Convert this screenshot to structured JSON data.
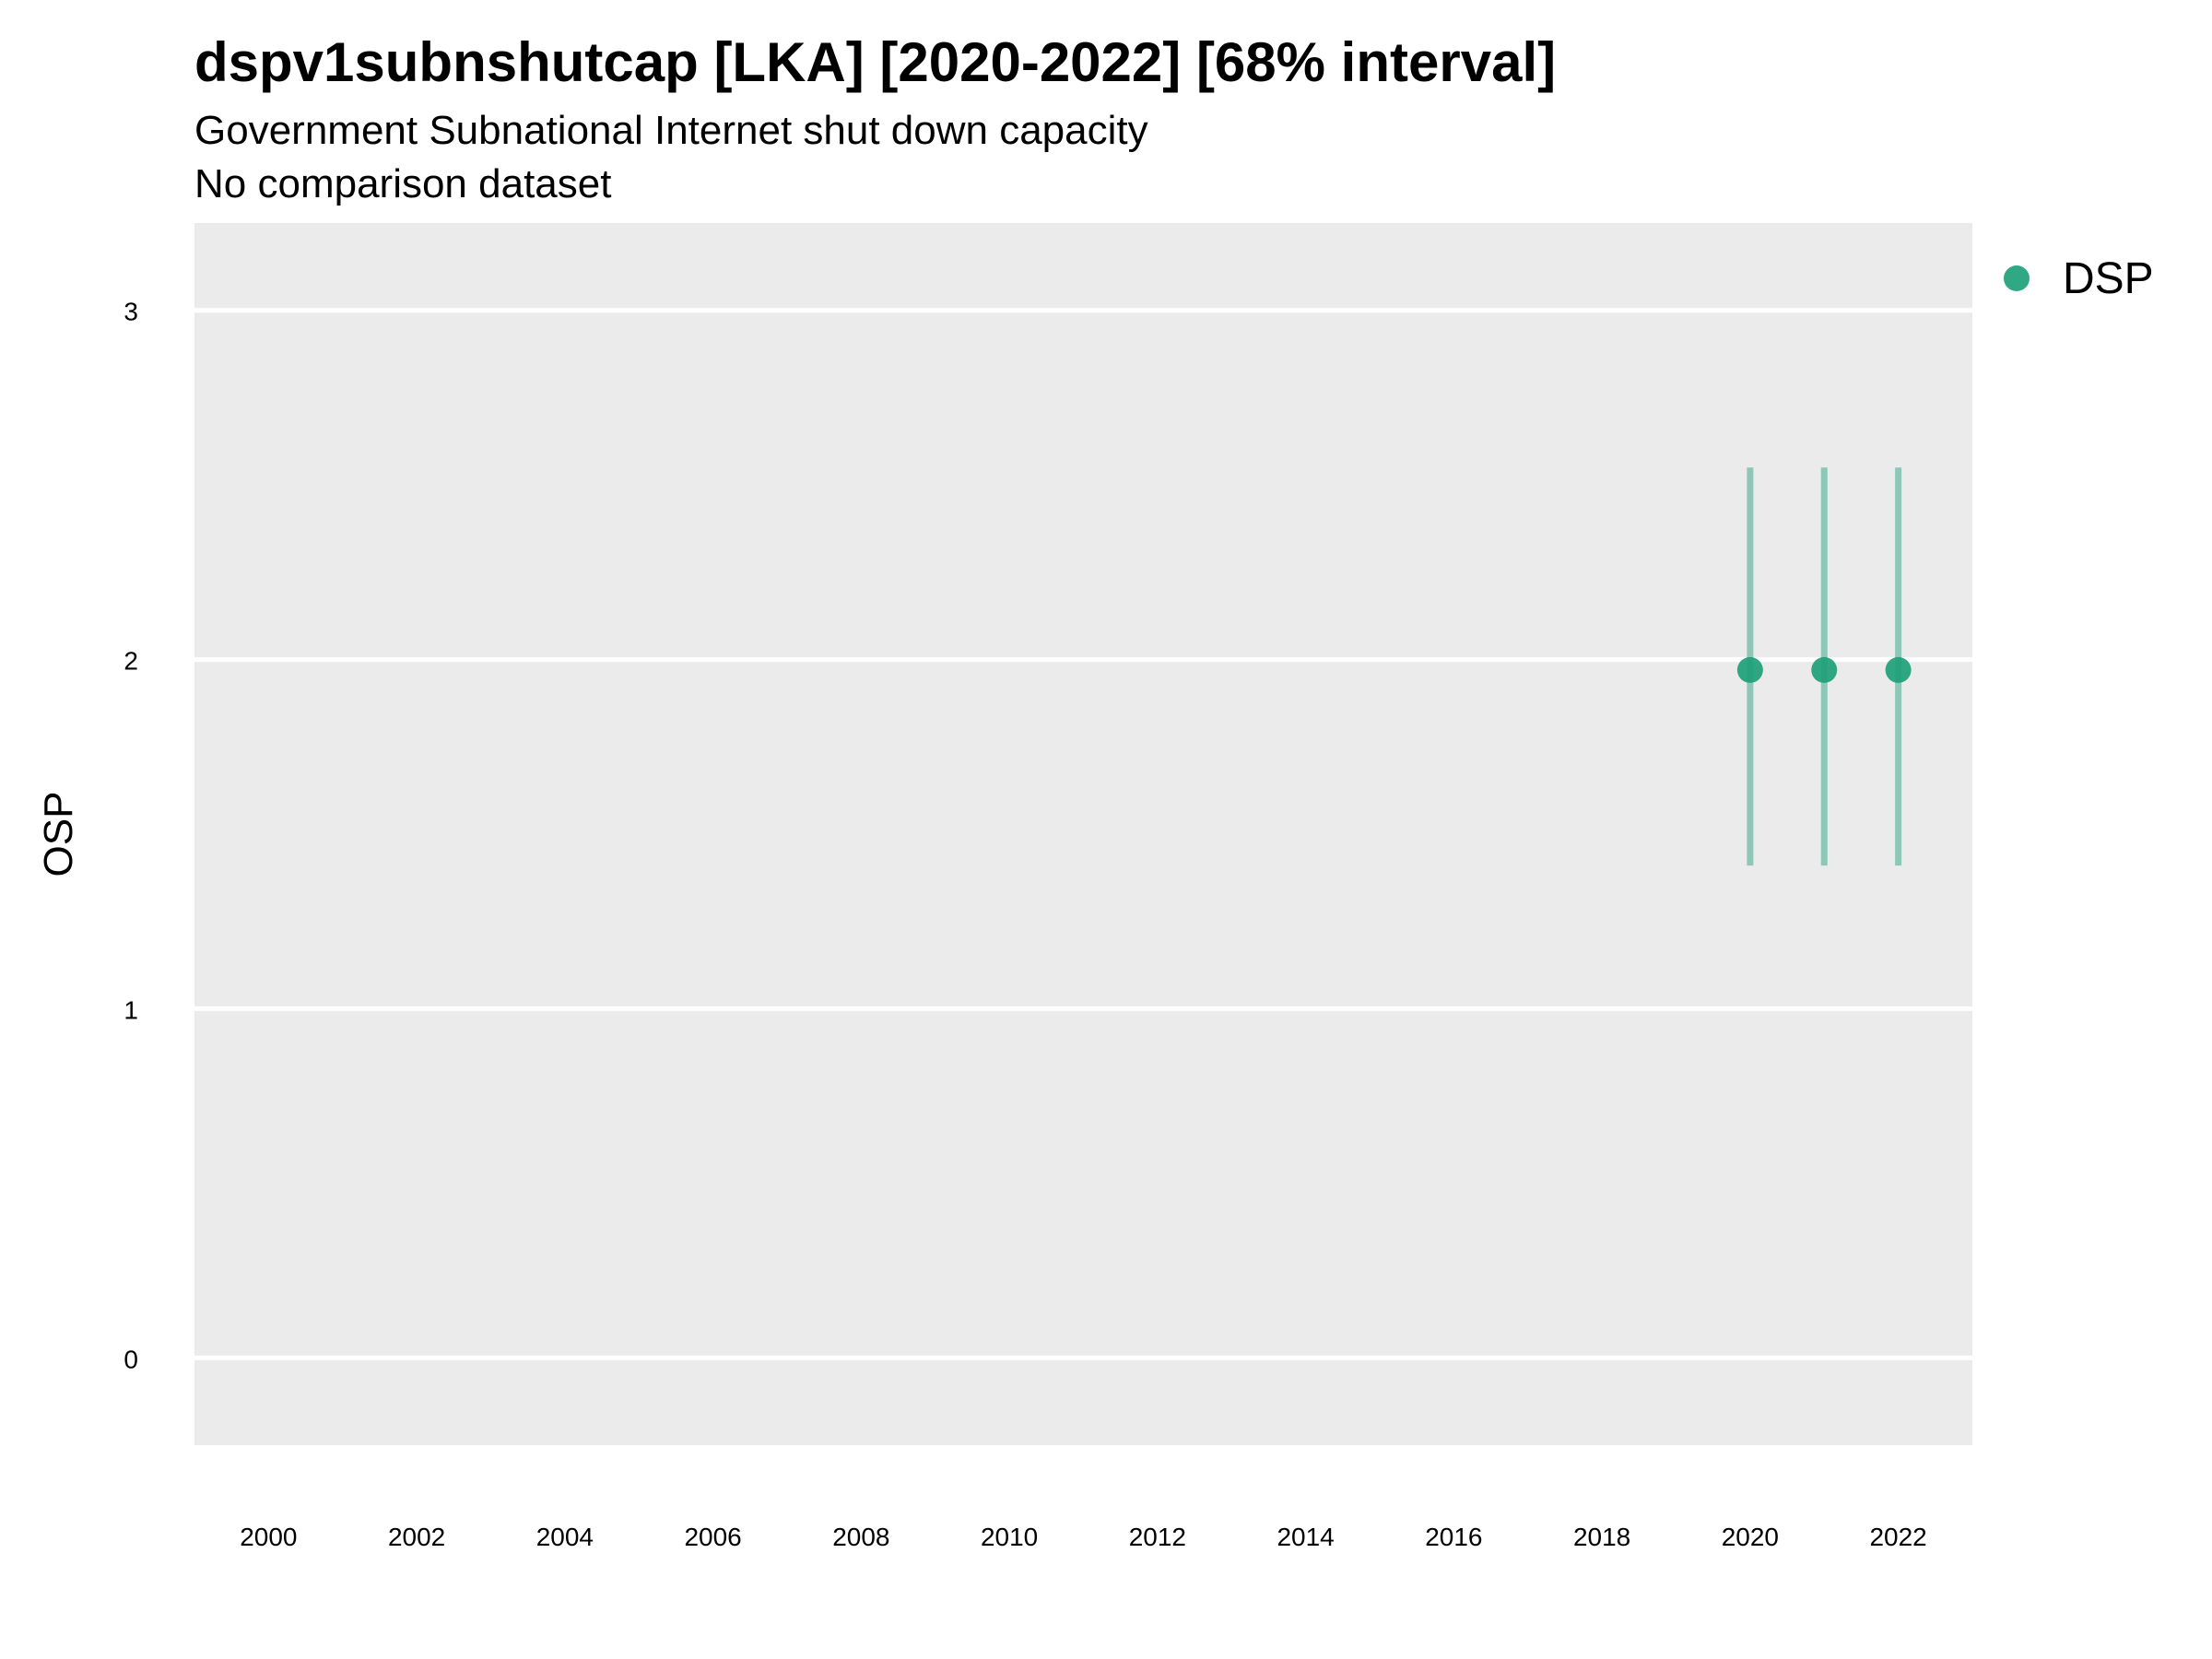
{
  "chart_data": {
    "type": "scatter",
    "title": "dspv1subnshutcap [LKA] [2020-2022] [68% interval]",
    "subtitle": "Government Subnational Internet shut down capacity",
    "caption": "No comparison dataset",
    "xlabel": "",
    "ylabel": "OSP",
    "xlim": [
      1999,
      2023
    ],
    "ylim": [
      -0.25,
      3.25
    ],
    "x_ticks": [
      "2000",
      "2002",
      "2004",
      "2006",
      "2008",
      "2010",
      "2012",
      "2014",
      "2016",
      "2018",
      "2020",
      "2022"
    ],
    "y_ticks": [
      "0",
      "1",
      "2",
      "3"
    ],
    "grid": true,
    "legend": {
      "position": "top-right",
      "entries": [
        "DSP"
      ]
    },
    "series": [
      {
        "name": "DSP",
        "color": "#1b9e77",
        "points": [
          {
            "x": 2020,
            "y": 1.97,
            "lower": 1.41,
            "upper": 2.55
          },
          {
            "x": 2021,
            "y": 1.97,
            "lower": 1.41,
            "upper": 2.55
          },
          {
            "x": 2022,
            "y": 1.97,
            "lower": 1.41,
            "upper": 2.55
          }
        ]
      }
    ]
  }
}
